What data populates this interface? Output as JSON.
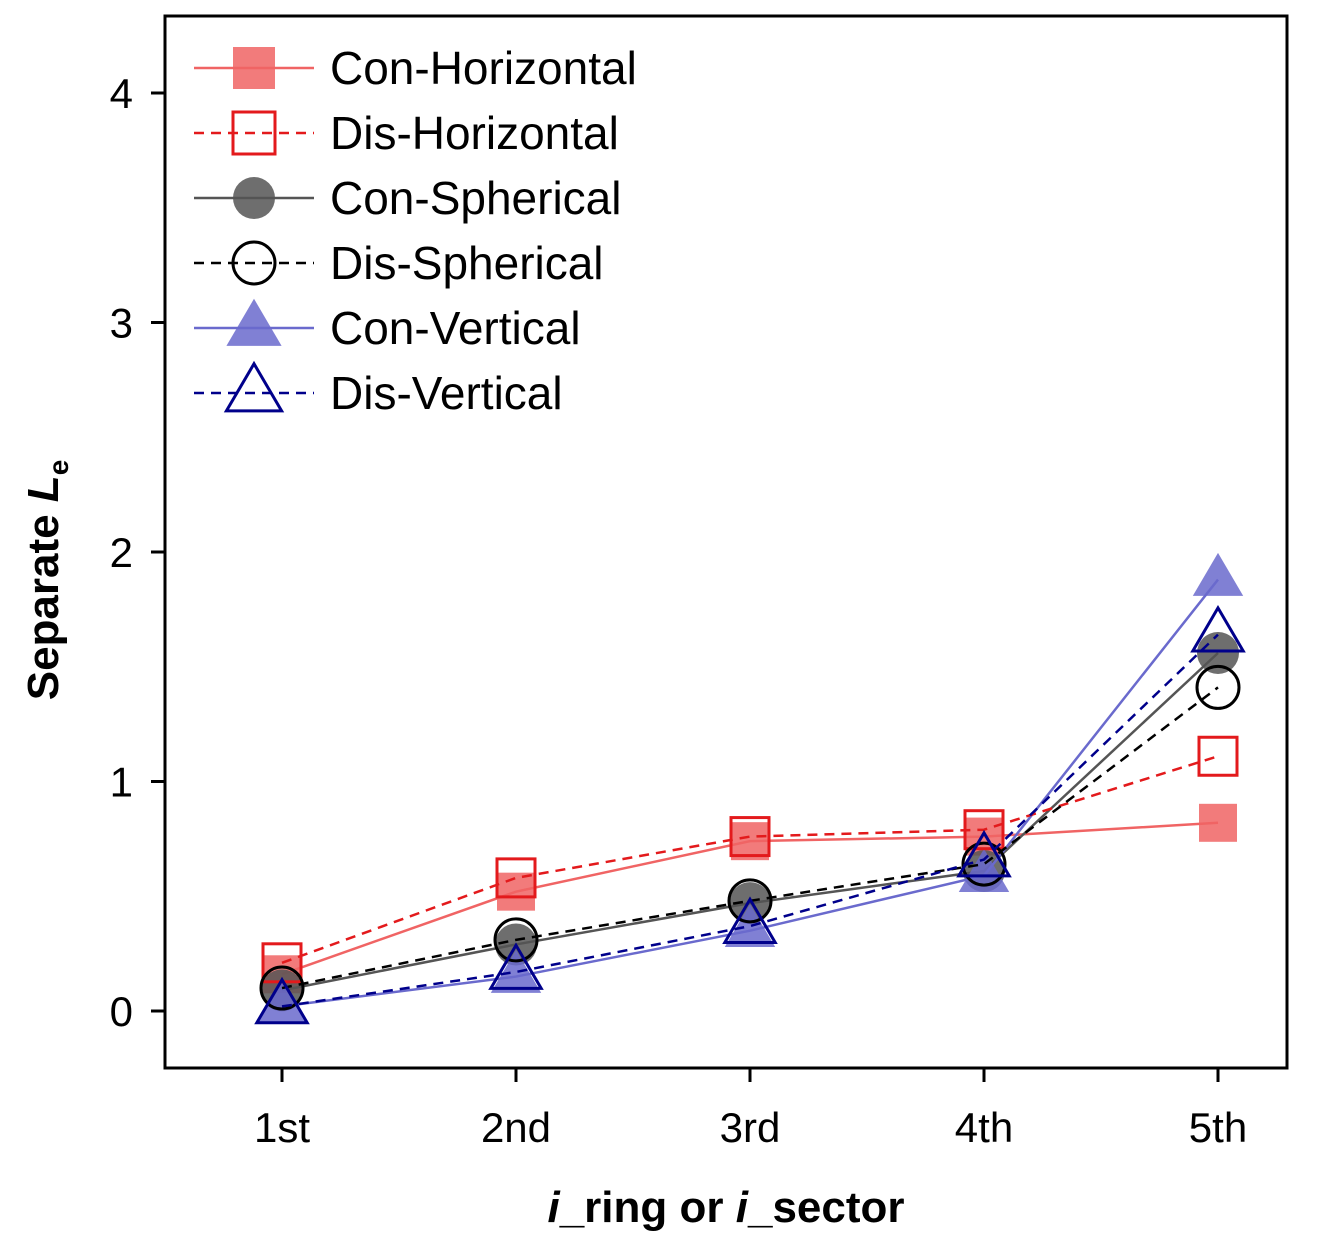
{
  "chart_data": {
    "type": "line",
    "categories": [
      "1st",
      "2nd",
      "3rd",
      "4th",
      "5th"
    ],
    "xlabel": {
      "italic": "i",
      "rest1": "_ring or ",
      "italic2": "i",
      "rest2": "_sector"
    },
    "ylabel": {
      "prefix": "Separate ",
      "symbol": "L",
      "subscript": "e"
    },
    "ylim": [
      -0.25,
      4.3
    ],
    "yticks": [
      "0",
      "1",
      "2",
      "3",
      "4"
    ],
    "ytick_values": [
      0,
      1,
      2,
      3,
      4
    ],
    "legend_position": "top-left",
    "grid": false,
    "series": [
      {
        "name": "Con-Horizontal",
        "values": [
          0.16,
          0.52,
          0.74,
          0.76,
          0.82
        ],
        "color": "#f06464",
        "marker": "square",
        "filled": true,
        "dashed": false
      },
      {
        "name": "Dis-Horizontal",
        "values": [
          0.21,
          0.58,
          0.76,
          0.79,
          1.11
        ],
        "color": "#e31a1c",
        "marker": "square",
        "filled": false,
        "dashed": true
      },
      {
        "name": "Con-Spherical",
        "values": [
          0.09,
          0.29,
          0.47,
          0.61,
          1.56
        ],
        "color": "#555555",
        "marker": "circle",
        "filled": true,
        "dashed": false
      },
      {
        "name": "Dis-Spherical",
        "values": [
          0.1,
          0.31,
          0.48,
          0.64,
          1.41
        ],
        "color": "#000000",
        "marker": "circle",
        "filled": false,
        "dashed": true
      },
      {
        "name": "Con-Vertical",
        "values": [
          0.02,
          0.15,
          0.35,
          0.59,
          1.88
        ],
        "color": "#6a6acd",
        "marker": "triangle",
        "filled": true,
        "dashed": false
      },
      {
        "name": "Dis-Vertical",
        "values": [
          0.02,
          0.17,
          0.37,
          0.66,
          1.64
        ],
        "color": "#00008b",
        "marker": "triangle",
        "filled": false,
        "dashed": true
      }
    ]
  }
}
